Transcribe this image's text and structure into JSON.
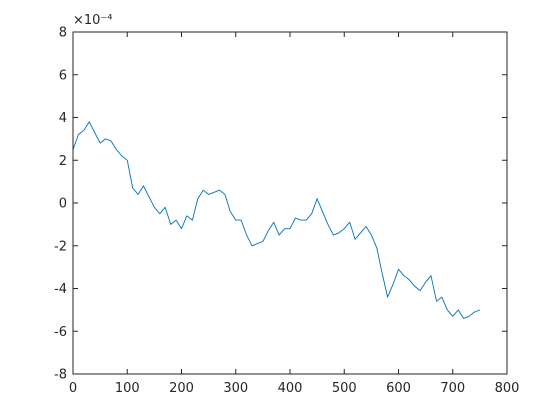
{
  "chart_data": {
    "type": "line",
    "title": "",
    "xlabel": "",
    "ylabel": "",
    "y_exponent_label": "×10⁻⁴",
    "xlim": [
      0,
      800
    ],
    "ylim": [
      -8,
      8
    ],
    "xticks": [
      0,
      100,
      200,
      300,
      400,
      500,
      600,
      700,
      800
    ],
    "yticks": [
      -8,
      -6,
      -4,
      -2,
      0,
      2,
      4,
      6,
      8
    ],
    "xtick_labels": [
      "0",
      "100",
      "200",
      "300",
      "400",
      "500",
      "600",
      "700",
      "800"
    ],
    "ytick_labels": [
      "-8",
      "-6",
      "-4",
      "-2",
      "0",
      "2",
      "4",
      "6",
      "8"
    ],
    "grid": false,
    "legend": "none",
    "series_color": "#0072BD",
    "series": [
      {
        "x": [
          0,
          10,
          20,
          30,
          40,
          50,
          60,
          70,
          80,
          90,
          100,
          110,
          120,
          130,
          140,
          150,
          160,
          170,
          180,
          190,
          200,
          210,
          220,
          230,
          240,
          250,
          260,
          270,
          280,
          290,
          300,
          310,
          320,
          330,
          340,
          350,
          360,
          370,
          380,
          390,
          400,
          410,
          420,
          430,
          440,
          450,
          460,
          470,
          480,
          490,
          500,
          510,
          520,
          530,
          540,
          550,
          560,
          570,
          580,
          590,
          600,
          610,
          620,
          630,
          640,
          650,
          660,
          670,
          680,
          690,
          700,
          710,
          720,
          730,
          740,
          750
        ],
        "y": [
          2.5,
          3.2,
          3.4,
          3.8,
          3.3,
          2.8,
          3.0,
          2.9,
          2.5,
          2.2,
          2.0,
          0.7,
          0.4,
          0.8,
          0.3,
          -0.2,
          -0.5,
          -0.2,
          -1.0,
          -0.8,
          -1.2,
          -0.6,
          -0.8,
          0.2,
          0.6,
          0.4,
          0.5,
          0.6,
          0.4,
          -0.4,
          -0.8,
          -0.8,
          -1.5,
          -2.0,
          -1.9,
          -1.8,
          -1.3,
          -0.9,
          -1.5,
          -1.2,
          -1.2,
          -0.7,
          -0.8,
          -0.8,
          -0.5,
          0.2,
          -0.4,
          -1.0,
          -1.5,
          -1.4,
          -1.2,
          -0.9,
          -1.7,
          -1.4,
          -1.1,
          -1.5,
          -2.1,
          -3.3,
          -4.4,
          -3.8,
          -3.1,
          -3.4,
          -3.6,
          -3.9,
          -4.1,
          -3.7,
          -3.4,
          -4.6,
          -4.4,
          -5.0,
          -5.3,
          -5.0,
          -5.4,
          -5.3,
          -5.1,
          -5.0
        ]
      }
    ]
  }
}
